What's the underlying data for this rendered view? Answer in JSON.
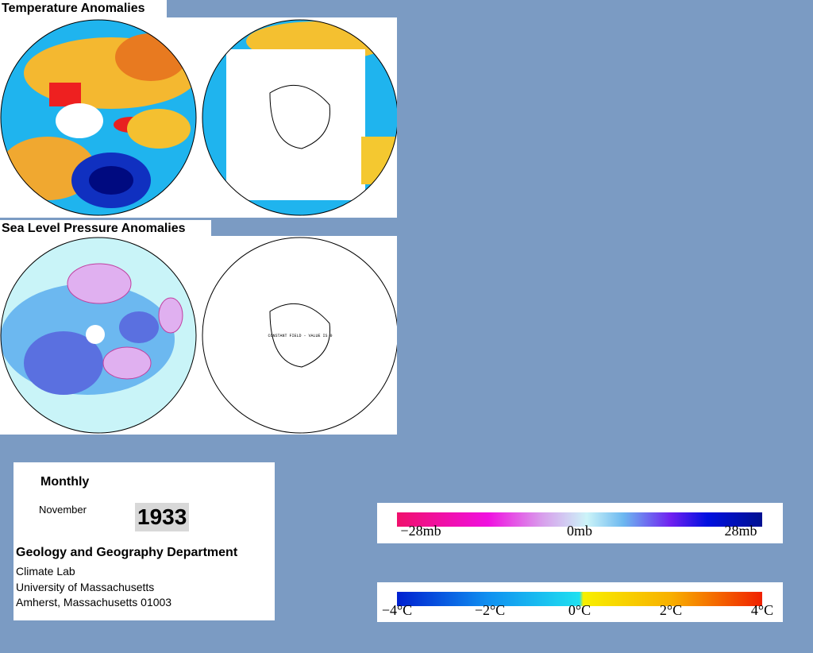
{
  "temperature_panel": {
    "title": "Temperature Anomalies"
  },
  "pressure_panel": {
    "title": "Sea Level Pressure Anomalies",
    "note": "CONSTANT FIELD - VALUE IS 0"
  },
  "info": {
    "period": "Monthly",
    "month": "November",
    "year": "1933",
    "department": "Geology and Geography Department",
    "lines": [
      "Climate Lab",
      "University of Massachusetts",
      "Amherst, Massachusetts 01003"
    ]
  },
  "legends": {
    "pressure": {
      "labels": [
        "−28mb",
        "0mb",
        "28mb"
      ]
    },
    "temperature": {
      "labels": [
        "−4°C",
        "−2°C",
        "0°C",
        "2°C",
        "4°C"
      ]
    }
  }
}
